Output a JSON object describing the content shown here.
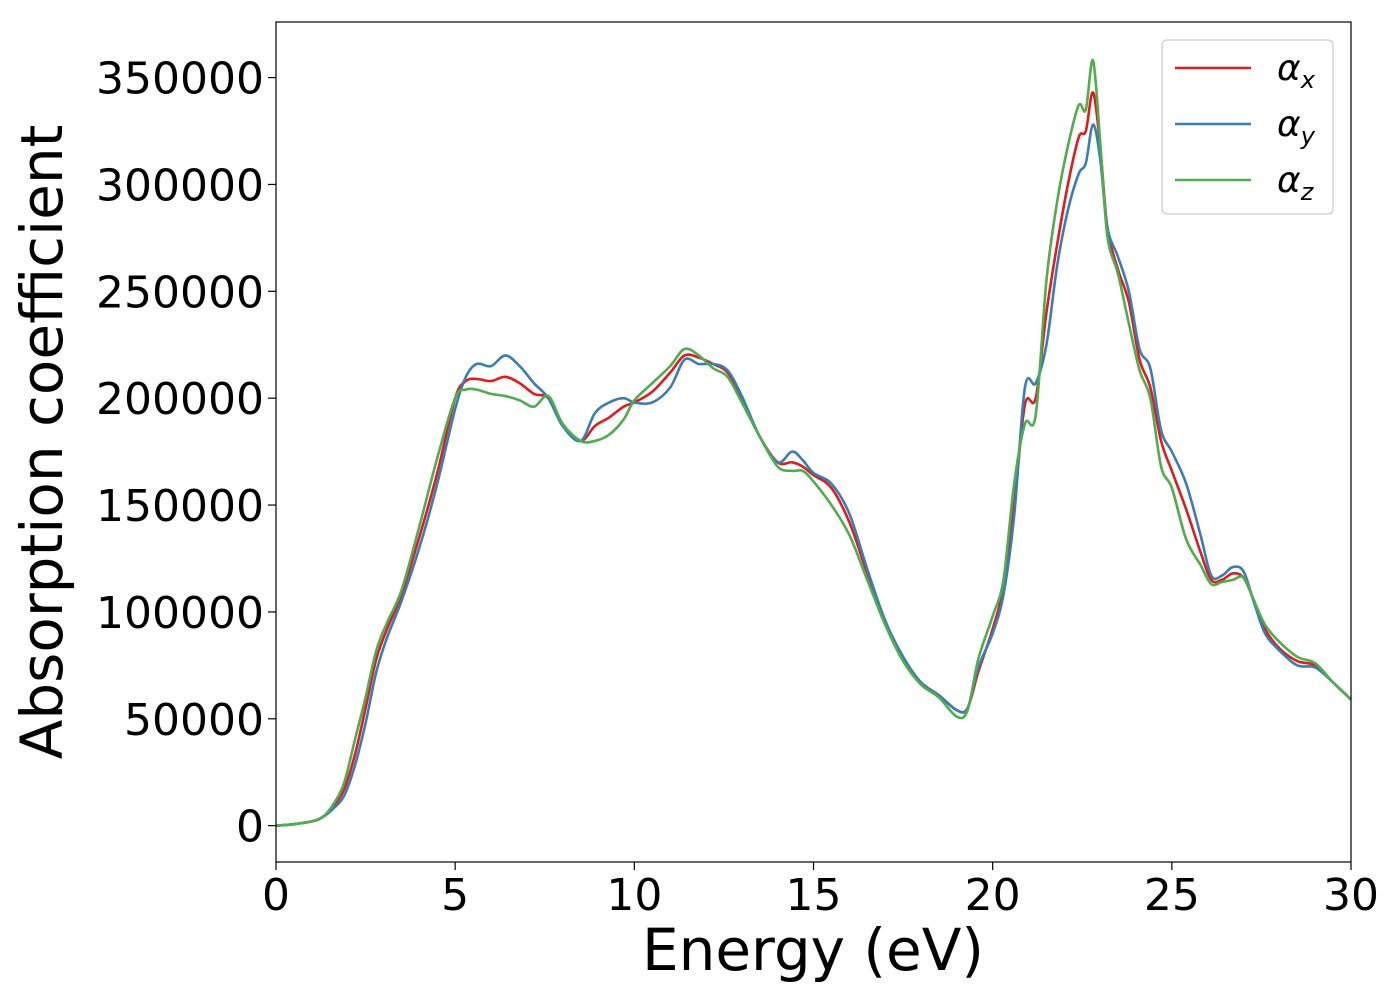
{
  "chart_data": {
    "type": "line",
    "xlabel": "Energy (eV)",
    "ylabel": "Absorption coefficient",
    "xlim": [
      0,
      30
    ],
    "ylim": [
      -17000,
      376000
    ],
    "xticks": [
      "0",
      "5",
      "10",
      "15",
      "20",
      "25",
      "30"
    ],
    "yticks": [
      "0",
      "50000",
      "100000",
      "150000",
      "200000",
      "250000",
      "300000",
      "350000"
    ],
    "grid": false,
    "legend_position": "top-right",
    "series": [
      {
        "name": "α_x",
        "label_main": "α",
        "label_sub": "x",
        "color": "#e41a1c",
        "x": [
          0,
          0.5,
          1,
          1.3,
          1.6,
          1.9,
          2.2,
          2.5,
          2.8,
          3.1,
          3.5,
          4.0,
          4.5,
          5.0,
          5.3,
          5.6,
          6.0,
          6.4,
          6.8,
          7.2,
          7.6,
          8.0,
          8.5,
          8.9,
          9.3,
          9.7,
          10.0,
          10.5,
          11.0,
          11.4,
          11.8,
          12.2,
          12.6,
          13.0,
          13.5,
          14.0,
          14.4,
          14.7,
          15.0,
          15.5,
          16.0,
          16.5,
          17.0,
          17.5,
          18.0,
          18.5,
          19.0,
          19.3,
          19.6,
          20.0,
          20.3,
          20.6,
          20.9,
          21.2,
          21.5,
          21.8,
          22.1,
          22.4,
          22.6,
          22.8,
          23.0,
          23.2,
          23.5,
          23.8,
          24.1,
          24.4,
          24.7,
          25.0,
          25.4,
          25.8,
          26.1,
          26.4,
          26.7,
          27.0,
          27.3,
          27.6,
          28.0,
          28.5,
          29.0,
          29.5,
          30.0
        ],
        "y": [
          0,
          700,
          2000,
          4000,
          9000,
          17000,
          33000,
          55000,
          78000,
          92000,
          108000,
          135000,
          165000,
          200000,
          208000,
          209000,
          208000,
          210000,
          207000,
          202000,
          200000,
          188000,
          180000,
          187000,
          191000,
          196000,
          198000,
          203000,
          212000,
          220000,
          219000,
          216000,
          212000,
          200000,
          182000,
          170000,
          170000,
          168000,
          164000,
          158000,
          142000,
          118000,
          95000,
          78000,
          67000,
          61000,
          54000,
          55000,
          72000,
          92000,
          112000,
          150000,
          197000,
          200000,
          240000,
          272000,
          300000,
          322000,
          325000,
          343000,
          318000,
          280000,
          260000,
          245000,
          218000,
          205000,
          180000,
          166000,
          148000,
          128000,
          115000,
          115000,
          118000,
          116000,
          105000,
          92000,
          83000,
          77000,
          75000,
          67000,
          59000
        ]
      },
      {
        "name": "α_y",
        "label_main": "α",
        "label_sub": "y",
        "color": "#377eb8",
        "x": [
          0,
          0.5,
          1,
          1.3,
          1.6,
          1.9,
          2.2,
          2.5,
          2.8,
          3.1,
          3.5,
          4.0,
          4.5,
          5.0,
          5.3,
          5.6,
          6.0,
          6.4,
          6.8,
          7.2,
          7.6,
          8.0,
          8.5,
          8.9,
          9.3,
          9.7,
          10.0,
          10.5,
          11.0,
          11.4,
          11.8,
          12.2,
          12.6,
          13.0,
          13.5,
          14.0,
          14.4,
          14.7,
          15.0,
          15.5,
          16.0,
          16.5,
          17.0,
          17.5,
          18.0,
          18.5,
          19.0,
          19.3,
          19.6,
          20.0,
          20.3,
          20.6,
          20.9,
          21.2,
          21.5,
          21.8,
          22.1,
          22.4,
          22.6,
          22.8,
          23.0,
          23.2,
          23.5,
          23.8,
          24.1,
          24.4,
          24.7,
          25.0,
          25.4,
          25.8,
          26.1,
          26.4,
          26.7,
          27.0,
          27.3,
          27.6,
          28.0,
          28.5,
          29.0,
          29.5,
          30.0
        ],
        "y": [
          0,
          700,
          2000,
          4000,
          8000,
          14000,
          28000,
          48000,
          72000,
          88000,
          105000,
          130000,
          160000,
          195000,
          210000,
          216000,
          215000,
          220000,
          215000,
          207000,
          200000,
          187000,
          180000,
          193000,
          198000,
          200000,
          198000,
          198000,
          205000,
          218000,
          216000,
          216000,
          213000,
          201000,
          182000,
          170000,
          175000,
          171000,
          165000,
          160000,
          146000,
          120000,
          96000,
          79000,
          67000,
          61000,
          54000,
          55000,
          74000,
          90000,
          108000,
          145000,
          205000,
          207000,
          225000,
          262000,
          288000,
          305000,
          310000,
          328000,
          312000,
          280000,
          266000,
          250000,
          223000,
          214000,
          185000,
          175000,
          160000,
          136000,
          117000,
          117000,
          121000,
          119000,
          104000,
          90000,
          82000,
          75000,
          74000,
          67000,
          59000
        ]
      },
      {
        "name": "α_z",
        "label_main": "α",
        "label_sub": "z",
        "color": "#4daf4a",
        "x": [
          0,
          0.5,
          1,
          1.3,
          1.6,
          1.9,
          2.2,
          2.5,
          2.8,
          3.1,
          3.5,
          4.0,
          4.5,
          5.0,
          5.3,
          5.6,
          6.0,
          6.4,
          6.8,
          7.2,
          7.6,
          8.0,
          8.5,
          8.9,
          9.3,
          9.7,
          10.0,
          10.5,
          11.0,
          11.4,
          11.8,
          12.2,
          12.6,
          13.0,
          13.5,
          14.0,
          14.4,
          14.7,
          15.0,
          15.5,
          16.0,
          16.5,
          17.0,
          17.5,
          18.0,
          18.5,
          19.0,
          19.3,
          19.6,
          20.0,
          20.3,
          20.6,
          20.9,
          21.2,
          21.5,
          21.8,
          22.1,
          22.4,
          22.6,
          22.8,
          23.0,
          23.2,
          23.5,
          23.8,
          24.1,
          24.4,
          24.7,
          25.0,
          25.4,
          25.8,
          26.1,
          26.4,
          26.7,
          27.0,
          27.3,
          27.6,
          28.0,
          28.5,
          29.0,
          29.5,
          30.0
        ],
        "y": [
          0,
          700,
          2000,
          4000,
          10000,
          20000,
          40000,
          60000,
          82000,
          95000,
          110000,
          140000,
          172000,
          200000,
          204000,
          204000,
          202000,
          201000,
          199000,
          196000,
          201000,
          188000,
          180000,
          180000,
          183000,
          190000,
          199000,
          207000,
          215000,
          223000,
          220000,
          214000,
          210000,
          198000,
          182000,
          168000,
          166000,
          166000,
          161000,
          150000,
          136000,
          115000,
          94000,
          77000,
          66000,
          60000,
          51000,
          54000,
          78000,
          98000,
          115000,
          160000,
          188000,
          192000,
          255000,
          292000,
          318000,
          337000,
          335000,
          358000,
          320000,
          276000,
          258000,
          235000,
          213000,
          200000,
          168000,
          158000,
          134000,
          122000,
          113000,
          114000,
          115000,
          116000,
          105000,
          94000,
          86000,
          79000,
          76000,
          67000,
          59000
        ]
      }
    ]
  }
}
